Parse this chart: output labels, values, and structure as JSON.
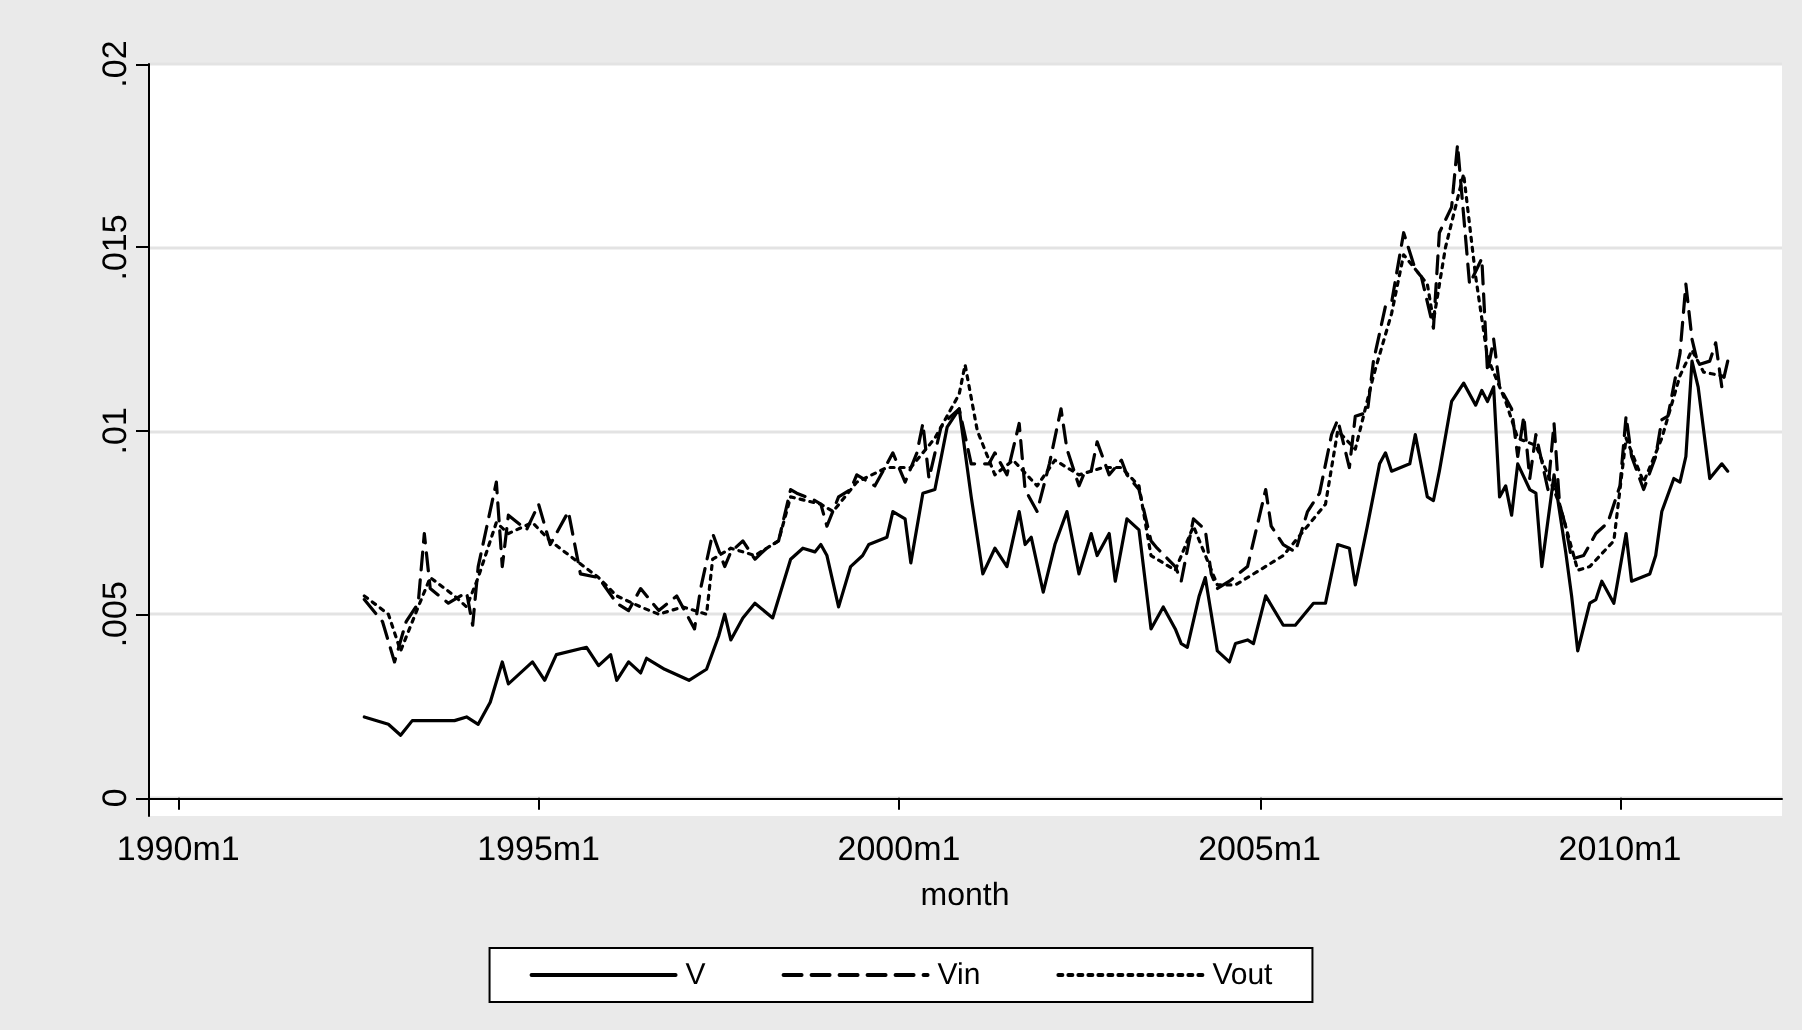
{
  "chart_data": {
    "type": "line",
    "xlabel": "month",
    "xlim": [
      "1989-08",
      "2012-04"
    ],
    "ylim": [
      -0.0005,
      0.02
    ],
    "xticks": [
      {
        "value": "1990-01",
        "label": "1990m1"
      },
      {
        "value": "1995-01",
        "label": "1995m1"
      },
      {
        "value": "2000-01",
        "label": "2000m1"
      },
      {
        "value": "2005-01",
        "label": "2005m1"
      },
      {
        "value": "2010-01",
        "label": "2010m1"
      }
    ],
    "yticks": [
      {
        "value": 0,
        "label": "0"
      },
      {
        "value": 0.005,
        "label": ".005"
      },
      {
        "value": 0.01,
        "label": ".01"
      },
      {
        "value": 0.015,
        "label": ".015"
      },
      {
        "value": 0.02,
        "label": ".02"
      }
    ],
    "grid": "y",
    "legend": "bottom",
    "marker": "none",
    "series": [
      {
        "name": "V",
        "color": "#000000",
        "line_style": "solid",
        "x": [
          "1992-08",
          "1992-12",
          "1993-02",
          "1993-04",
          "1993-07",
          "1993-11",
          "1994-01",
          "1994-03",
          "1994-05",
          "1994-07",
          "1994-08",
          "1994-12",
          "1995-02",
          "1995-04",
          "1995-09",
          "1995-11",
          "1996-01",
          "1996-02",
          "1996-04",
          "1996-06",
          "1996-07",
          "1996-10",
          "1997-02",
          "1997-05",
          "1997-07",
          "1997-08",
          "1997-09",
          "1997-11",
          "1998-01",
          "1998-04",
          "1998-07",
          "1998-09",
          "1998-11",
          "1998-12",
          "1999-01",
          "1999-03",
          "1999-05",
          "1999-07",
          "1999-08",
          "1999-11",
          "1999-12",
          "2000-02",
          "2000-03",
          "2000-05",
          "2000-07",
          "2000-09",
          "2000-11",
          "2001-01",
          "2001-03",
          "2001-05",
          "2001-07",
          "2001-09",
          "2001-10",
          "2001-11",
          "2002-01",
          "2002-03",
          "2002-05",
          "2002-07",
          "2002-09",
          "2002-10",
          "2002-12",
          "2003-01",
          "2003-03",
          "2003-05",
          "2003-07",
          "2003-09",
          "2003-11",
          "2003-12",
          "2004-01",
          "2004-03",
          "2004-04",
          "2004-06",
          "2004-08",
          "2004-09",
          "2004-11",
          "2004-12",
          "2005-02",
          "2005-05",
          "2005-07",
          "2005-10",
          "2005-12",
          "2006-02",
          "2006-04",
          "2006-05",
          "2006-07",
          "2006-09",
          "2006-10",
          "2006-11",
          "2007-02",
          "2007-03",
          "2007-05",
          "2007-06",
          "2007-07",
          "2007-09",
          "2007-11",
          "2008-01",
          "2008-02",
          "2008-03",
          "2008-04",
          "2008-05",
          "2008-06",
          "2008-07",
          "2008-08",
          "2008-10",
          "2008-11",
          "2008-12",
          "2009-02",
          "2009-04",
          "2009-05",
          "2009-06",
          "2009-08",
          "2009-09",
          "2009-10",
          "2009-12",
          "2010-02",
          "2010-03",
          "2010-06",
          "2010-07",
          "2010-08",
          "2010-10",
          "2010-11",
          "2010-12",
          "2011-01",
          "2011-02",
          "2011-04",
          "2011-06",
          "2011-07"
        ],
        "values": [
          0.0022,
          0.002,
          0.0017,
          0.0021,
          0.0021,
          0.0021,
          0.0022,
          0.002,
          0.0026,
          0.0037,
          0.0031,
          0.0037,
          0.0032,
          0.0039,
          0.0041,
          0.0036,
          0.0039,
          0.0032,
          0.0037,
          0.0034,
          0.0038,
          0.0035,
          0.0032,
          0.0035,
          0.0044,
          0.005,
          0.0043,
          0.0049,
          0.0053,
          0.0049,
          0.0065,
          0.0068,
          0.0067,
          0.0069,
          0.0066,
          0.0052,
          0.0063,
          0.0066,
          0.0069,
          0.0071,
          0.0078,
          0.0076,
          0.0064,
          0.0083,
          0.0084,
          0.0101,
          0.0106,
          0.0082,
          0.0061,
          0.0068,
          0.0063,
          0.0078,
          0.0069,
          0.0071,
          0.0056,
          0.0069,
          0.0078,
          0.0061,
          0.0072,
          0.0066,
          0.0072,
          0.0059,
          0.0076,
          0.0073,
          0.0046,
          0.0052,
          0.0046,
          0.0042,
          0.0041,
          0.0055,
          0.006,
          0.004,
          0.0037,
          0.0042,
          0.0043,
          0.0042,
          0.0055,
          0.0047,
          0.0047,
          0.0053,
          0.0053,
          0.0069,
          0.0068,
          0.0058,
          0.0074,
          0.0091,
          0.0094,
          0.0089,
          0.0091,
          0.0099,
          0.0082,
          0.0081,
          0.0089,
          0.0108,
          0.0113,
          0.0107,
          0.0111,
          0.0108,
          0.0112,
          0.0082,
          0.0085,
          0.0077,
          0.0091,
          0.0084,
          0.0083,
          0.0063,
          0.0088,
          0.0067,
          0.0055,
          0.004,
          0.0053,
          0.0054,
          0.0059,
          0.0053,
          0.0072,
          0.0059,
          0.0061,
          0.0066,
          0.0078,
          0.0087,
          0.0086,
          0.0093,
          0.0119,
          0.0112,
          0.0087,
          0.0091,
          0.0089
        ]
      },
      {
        "name": "Vin",
        "color": "#000000",
        "line_style": "dashed",
        "x": [
          "1992-08",
          "1992-11",
          "1993-01",
          "1993-03",
          "1993-05",
          "1993-06",
          "1993-07",
          "1993-10",
          "1994-01",
          "1994-02",
          "1994-03",
          "1994-06",
          "1994-07",
          "1994-08",
          "1994-11",
          "1995-01",
          "1995-03",
          "1995-06",
          "1995-08",
          "1995-11",
          "1996-02",
          "1996-04",
          "1996-06",
          "1996-09",
          "1996-12",
          "1997-03",
          "1997-04",
          "1997-06",
          "1997-08",
          "1997-09",
          "1997-11",
          "1998-01",
          "1998-03",
          "1998-05",
          "1998-07",
          "1998-08",
          "1998-11",
          "1998-12",
          "1999-01",
          "1999-03",
          "1999-05",
          "1999-06",
          "1999-09",
          "1999-11",
          "1999-12",
          "2000-02",
          "2000-04",
          "2000-05",
          "2000-06",
          "2000-08",
          "2000-09",
          "2000-11",
          "2001-01",
          "2001-04",
          "2001-05",
          "2001-07",
          "2001-09",
          "2001-10",
          "2001-12",
          "2002-02",
          "2002-04",
          "2002-05",
          "2002-07",
          "2002-08",
          "2002-09",
          "2002-10",
          "2002-12",
          "2003-02",
          "2003-03",
          "2003-05",
          "2003-07",
          "2003-08",
          "2003-11",
          "2003-12",
          "2004-02",
          "2004-04",
          "2004-05",
          "2004-06",
          "2004-08",
          "2004-11",
          "2005-02",
          "2005-03",
          "2005-05",
          "2005-07",
          "2005-09",
          "2005-11",
          "2006-01",
          "2006-02",
          "2006-04",
          "2006-05",
          "2006-07",
          "2006-08",
          "2006-10",
          "2006-11",
          "2007-01",
          "2007-03",
          "2007-04",
          "2007-06",
          "2007-07",
          "2007-09",
          "2007-10",
          "2007-12",
          "2008-02",
          "2008-03",
          "2008-04",
          "2008-05",
          "2008-07",
          "2008-08",
          "2008-09",
          "2008-10",
          "2008-11",
          "2009-01",
          "2009-02",
          "2009-03",
          "2009-04",
          "2009-05",
          "2009-07",
          "2009-09",
          "2009-11",
          "2010-01",
          "2010-02",
          "2010-03",
          "2010-05",
          "2010-07",
          "2010-08",
          "2010-09",
          "2010-11",
          "2010-12",
          "2011-01",
          "2011-02",
          "2011-04",
          "2011-05",
          "2011-06",
          "2011-07"
        ],
        "values": [
          0.0054,
          0.0048,
          0.0037,
          0.0048,
          0.0053,
          0.0072,
          0.0057,
          0.0053,
          0.0056,
          0.0047,
          0.0063,
          0.0086,
          0.0063,
          0.0077,
          0.0073,
          0.008,
          0.0069,
          0.0078,
          0.0061,
          0.006,
          0.0053,
          0.0051,
          0.0057,
          0.0051,
          0.0055,
          0.0046,
          0.0057,
          0.0072,
          0.0063,
          0.0067,
          0.007,
          0.0065,
          0.0068,
          0.007,
          0.0084,
          0.0083,
          0.0081,
          0.008,
          0.0074,
          0.0082,
          0.0084,
          0.0088,
          0.0085,
          0.0091,
          0.0094,
          0.0086,
          0.0094,
          0.0102,
          0.0087,
          0.0101,
          0.0103,
          0.0106,
          0.0091,
          0.0091,
          0.0094,
          0.0088,
          0.0102,
          0.0084,
          0.0078,
          0.0091,
          0.0106,
          0.0095,
          0.0085,
          0.0089,
          0.0089,
          0.0097,
          0.0088,
          0.0092,
          0.0088,
          0.0084,
          0.007,
          0.0068,
          0.0063,
          0.0059,
          0.0076,
          0.0073,
          0.0061,
          0.0057,
          0.0059,
          0.0063,
          0.0084,
          0.0074,
          0.0069,
          0.0067,
          0.0078,
          0.0083,
          0.0099,
          0.0103,
          0.009,
          0.0104,
          0.0105,
          0.0119,
          0.0134,
          0.0135,
          0.0154,
          0.0144,
          0.0142,
          0.0128,
          0.0154,
          0.0161,
          0.0178,
          0.014,
          0.0147,
          0.0116,
          0.0125,
          0.0112,
          0.0106,
          0.0093,
          0.0104,
          0.0087,
          0.0099,
          0.0084,
          0.0102,
          0.008,
          0.0074,
          0.0065,
          0.0066,
          0.0072,
          0.0075,
          0.0085,
          0.0104,
          0.0093,
          0.0084,
          0.0093,
          0.0103,
          0.0104,
          0.0121,
          0.014,
          0.0125,
          0.0118,
          0.0119,
          0.0124,
          0.0112,
          0.0119
        ]
      },
      {
        "name": "Vout",
        "color": "#000000",
        "line_style": "dotted",
        "x": [
          "1992-08",
          "1992-12",
          "1993-02",
          "1993-05",
          "1993-07",
          "1993-11",
          "1994-01",
          "1994-03",
          "1994-06",
          "1994-08",
          "1994-12",
          "1995-03",
          "1995-07",
          "1995-11",
          "1996-02",
          "1996-06",
          "1996-09",
          "1997-01",
          "1997-05",
          "1997-06",
          "1997-09",
          "1998-01",
          "1998-05",
          "1998-07",
          "1998-12",
          "1999-02",
          "1999-06",
          "1999-11",
          "2000-03",
          "2000-07",
          "2000-11",
          "2000-12",
          "2001-02",
          "2001-05",
          "2001-08",
          "2001-12",
          "2002-03",
          "2002-07",
          "2002-11",
          "2003-02",
          "2003-05",
          "2003-07",
          "2003-11",
          "2004-02",
          "2004-06",
          "2004-09",
          "2005-01",
          "2005-05",
          "2005-08",
          "2005-12",
          "2006-02",
          "2006-05",
          "2006-08",
          "2006-11",
          "2007-01",
          "2007-05",
          "2007-06",
          "2007-08",
          "2007-11",
          "2008-01",
          "2008-03",
          "2008-06",
          "2008-08",
          "2008-11",
          "2009-01",
          "2009-03",
          "2009-06",
          "2009-08",
          "2009-12",
          "2010-02",
          "2010-05",
          "2010-08",
          "2010-11",
          "2011-01",
          "2011-03",
          "2011-06",
          "2011-07"
        ],
        "values": [
          0.0055,
          0.005,
          0.004,
          0.0052,
          0.006,
          0.0055,
          0.0052,
          0.006,
          0.0075,
          0.0072,
          0.0075,
          0.007,
          0.0065,
          0.006,
          0.0055,
          0.0052,
          0.005,
          0.0052,
          0.005,
          0.0065,
          0.0068,
          0.0066,
          0.007,
          0.0082,
          0.008,
          0.0078,
          0.0086,
          0.009,
          0.009,
          0.0098,
          0.011,
          0.0118,
          0.01,
          0.0088,
          0.0092,
          0.0085,
          0.0092,
          0.0088,
          0.009,
          0.009,
          0.0085,
          0.0066,
          0.0062,
          0.0074,
          0.0058,
          0.0058,
          0.0062,
          0.0066,
          0.0072,
          0.008,
          0.01,
          0.0095,
          0.0115,
          0.0132,
          0.0148,
          0.014,
          0.013,
          0.015,
          0.017,
          0.0142,
          0.012,
          0.0108,
          0.0098,
          0.0096,
          0.0088,
          0.008,
          0.0062,
          0.0063,
          0.007,
          0.0098,
          0.0086,
          0.0098,
          0.0115,
          0.0122,
          0.0116,
          0.0115,
          0.0114
        ]
      }
    ]
  }
}
